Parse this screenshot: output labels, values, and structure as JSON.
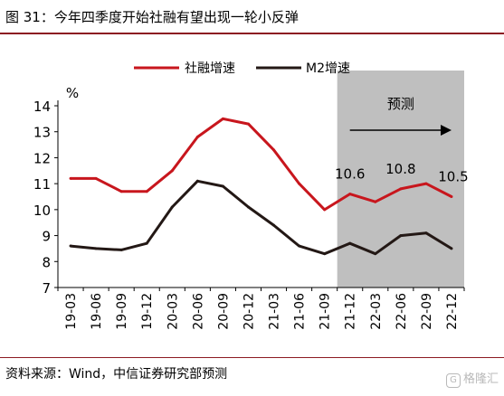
{
  "header": {
    "title": "图 31：今年四季度开始社融有望出现一轮小反弹"
  },
  "footer": {
    "source": "资料来源：Wind，中信证券研究部预测",
    "watermark": "格隆汇"
  },
  "chart_data": {
    "type": "line",
    "x": [
      "19-03",
      "19-06",
      "19-09",
      "19-12",
      "20-03",
      "20-06",
      "20-09",
      "20-12",
      "21-03",
      "21-06",
      "21-09",
      "21-12",
      "22-03",
      "22-06",
      "22-09",
      "22-12"
    ],
    "series": [
      {
        "name": "社融增速",
        "color": "#c8161d",
        "values": [
          11.2,
          11.2,
          10.7,
          10.7,
          11.5,
          12.8,
          13.5,
          13.3,
          12.3,
          11.0,
          10.0,
          10.6,
          10.3,
          10.8,
          11.0,
          10.5
        ]
      },
      {
        "name": "M2增速",
        "color": "#231815",
        "values": [
          8.6,
          8.5,
          8.45,
          8.7,
          10.1,
          11.1,
          10.9,
          10.1,
          9.4,
          8.6,
          8.3,
          8.7,
          8.3,
          9.0,
          9.1,
          8.5
        ]
      }
    ],
    "ylabel": "%",
    "ylim": [
      7,
      14
    ],
    "yticks": [
      7,
      8,
      9,
      10,
      11,
      12,
      13,
      14
    ],
    "legend_position": "top",
    "grid": false,
    "forecast": {
      "label": "预测",
      "from": "21-12",
      "to": "22-12",
      "color": "#bfbfbf"
    },
    "annotations": [
      {
        "text": "10.6",
        "x": "21-12",
        "series": "社融增速"
      },
      {
        "text": "10.8",
        "x": "22-06",
        "series": "社融增速"
      },
      {
        "text": "10.5",
        "x": "22-12",
        "series": "社融增速"
      }
    ]
  }
}
